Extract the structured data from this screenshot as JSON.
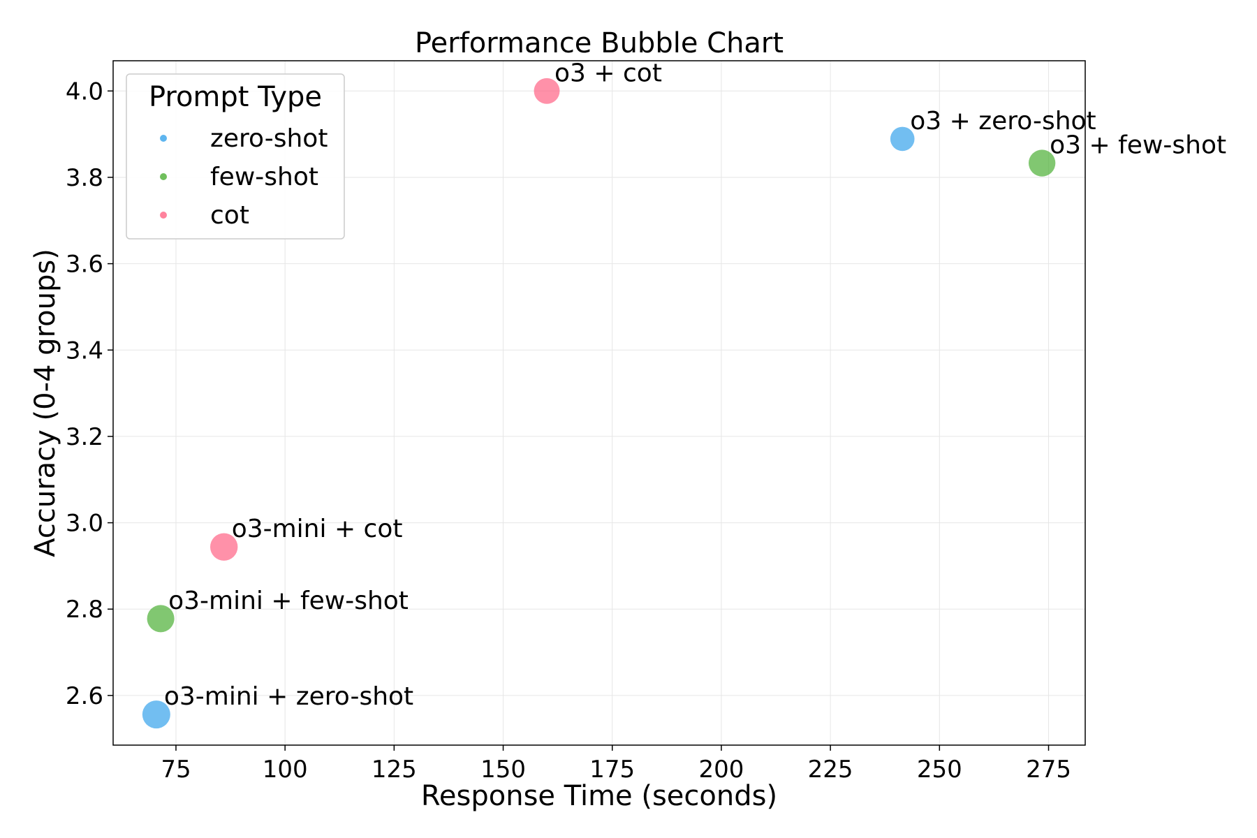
{
  "chart_data": {
    "type": "scatter",
    "title": "Performance Bubble Chart",
    "xlabel": "Response Time (seconds)",
    "ylabel": "Accuracy (0-4 groups)",
    "xlim": [
      60.6,
      283.4
    ],
    "ylim": [
      2.485,
      4.07
    ],
    "xticks": [
      75,
      100,
      125,
      150,
      175,
      200,
      225,
      250,
      275
    ],
    "yticks": [
      2.6,
      2.8,
      3.0,
      3.2,
      3.4,
      3.6,
      3.8,
      4.0
    ],
    "xtick_labels": [
      "75",
      "100",
      "125",
      "150",
      "175",
      "200",
      "225",
      "250",
      "275"
    ],
    "ytick_labels": [
      "2.6",
      "2.8",
      "3.0",
      "3.2",
      "3.4",
      "3.6",
      "3.8",
      "4.0"
    ],
    "grid": true,
    "legend": {
      "title": "Prompt Type",
      "position": "top-left",
      "entries": [
        {
          "label": "zero-shot",
          "color": "#36a2eb"
        },
        {
          "label": "few-shot",
          "color": "#4caf35"
        },
        {
          "label": "cot",
          "color": "#ff6384"
        }
      ]
    },
    "points": [
      {
        "label": "o3-mini + zero-shot",
        "x": 70.5,
        "y": 2.556,
        "group": "zero-shot",
        "size": 1.0
      },
      {
        "label": "o3-mini + few-shot",
        "x": 71.5,
        "y": 2.778,
        "group": "few-shot",
        "size": 0.95
      },
      {
        "label": "o3-mini + cot",
        "x": 86.0,
        "y": 2.944,
        "group": "cot",
        "size": 0.97
      },
      {
        "label": "o3 + cot",
        "x": 160.0,
        "y": 4.0,
        "group": "cot",
        "size": 0.85
      },
      {
        "label": "o3 + zero-shot",
        "x": 241.5,
        "y": 3.889,
        "group": "zero-shot",
        "size": 0.75
      },
      {
        "label": "o3 + few-shot",
        "x": 273.5,
        "y": 3.833,
        "group": "few-shot",
        "size": 0.92
      }
    ],
    "colors": {
      "zero-shot": "#36a2eb",
      "few-shot": "#4caf35",
      "cot": "#ff6384"
    }
  }
}
